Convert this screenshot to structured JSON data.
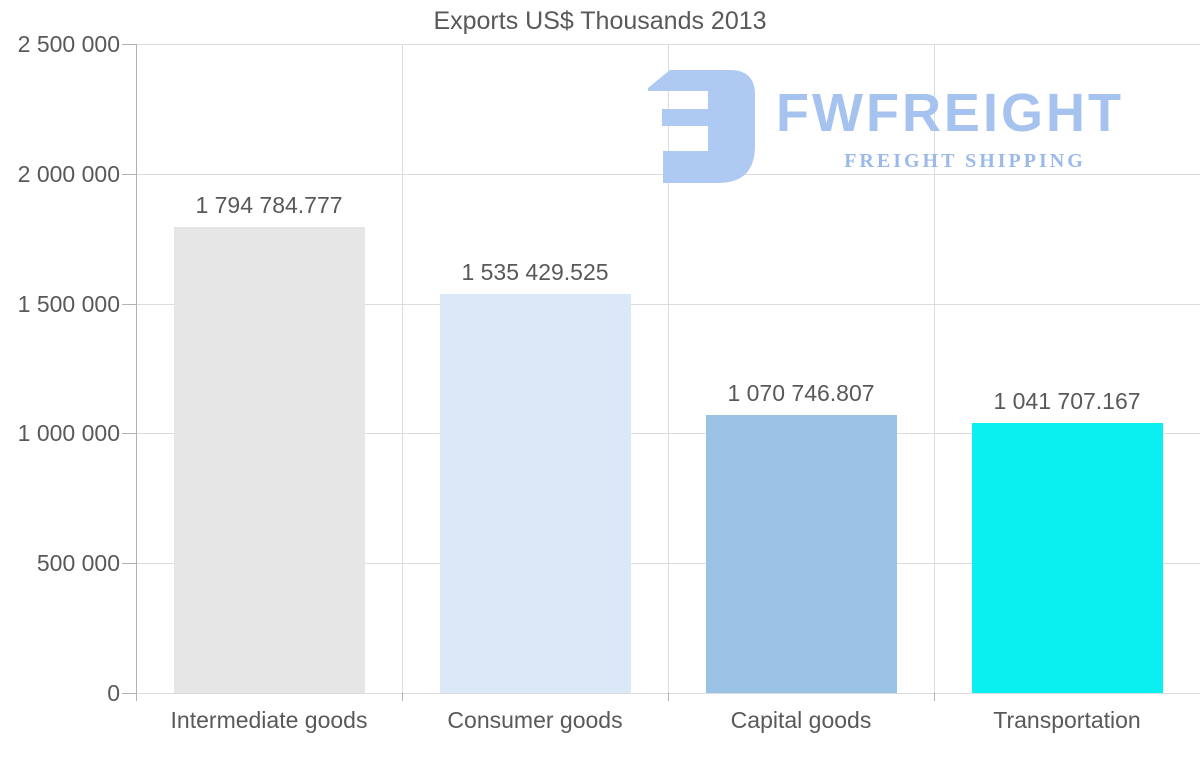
{
  "page": {
    "title": "Exports US$ Thousands 2013"
  },
  "watermark": {
    "brand": "FWFREIGHT",
    "tagline": "FREIGHT SHIPPING",
    "brand_color": "#a6c3ef",
    "tagline_color": "#9bb9ea",
    "icon_color": "#aecaf2",
    "icon_name": "fwfreight-logo"
  },
  "chart_data": {
    "type": "bar",
    "title": "Exports US$ Thousands 2013",
    "categories": [
      "Intermediate goods",
      "Consumer goods",
      "Capital goods",
      "Transportation"
    ],
    "values": [
      1794784.777,
      1535429.525,
      1070746.807,
      1041707.167
    ],
    "value_labels": [
      "1 794 784.777",
      "1 535 429.525",
      "1 070 746.807",
      "1 041 707.167"
    ],
    "bar_colors": [
      "#e6e6e6",
      "#dae8f8",
      "#99c2e5",
      "#0af0f0"
    ],
    "y_ticks": [
      0,
      500000,
      1000000,
      1500000,
      2000000,
      2500000
    ],
    "y_tick_labels": [
      "0",
      "500 000",
      "1 000 000",
      "1 500 000",
      "2 000 000",
      "2 500 000"
    ],
    "ylim": [
      0,
      2500000
    ],
    "xlabel": "",
    "ylabel": "",
    "grid": true,
    "legend": null,
    "text_color": "#595959",
    "grid_color": "#dcdcdc",
    "axis_color": "#b3b3b3"
  }
}
